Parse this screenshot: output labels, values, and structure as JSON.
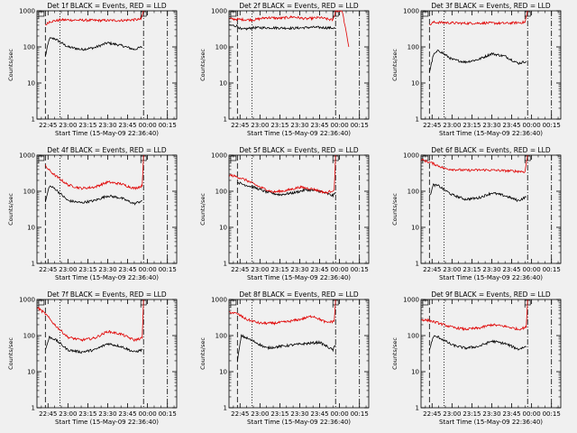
{
  "figure": {
    "background": "#f0f0f0",
    "colors": {
      "events": "#000000",
      "lld": "#e00000",
      "axes": "#000000"
    }
  },
  "chart_data": [
    {
      "type": "line",
      "title": "Det 1f BLACK = Events, RED = LLD",
      "xlabel": "Start Time (15-May-09 22:36:40)",
      "ylabel": "Counts/sec",
      "yscale": "log",
      "ylim": [
        1,
        1000
      ],
      "xlim": [
        "22:36:40",
        "00:22:00"
      ],
      "xticks": [
        "22:45",
        "23:00",
        "23:15",
        "23:30",
        "23:45",
        "00:00",
        "00:15"
      ],
      "yticks": [
        "1",
        "10",
        "100",
        "1000"
      ],
      "vlines": [
        {
          "time": "22:43",
          "style": "dashed"
        },
        {
          "time": "22:54",
          "style": "dotted"
        },
        {
          "time": "23:57",
          "style": "dashdot"
        },
        {
          "time": "00:15",
          "style": "dashdot"
        }
      ],
      "flags": [
        "22:40",
        "23:57"
      ],
      "series": [
        {
          "color": "#000000",
          "x": [
            "22:43",
            "22:46",
            "22:50",
            "23:00",
            "23:10",
            "23:20",
            "23:30",
            "23:40",
            "23:50",
            "23:56"
          ],
          "values": [
            55,
            170,
            170,
            100,
            85,
            95,
            130,
            110,
            85,
            100
          ]
        },
        {
          "color": "#e00000",
          "x": [
            "22:43",
            "22:46",
            "22:55",
            "23:10",
            "23:25",
            "23:40",
            "23:55",
            "23:57"
          ],
          "values": [
            400,
            500,
            560,
            550,
            540,
            540,
            580,
            1000
          ]
        }
      ]
    },
    {
      "type": "line",
      "title": "Det 2f BLACK = Events, RED = LLD",
      "xlabel": "Start Time (15-May-09 22:36:40)",
      "ylabel": "Counts/sec",
      "yscale": "log",
      "ylim": [
        1,
        1000
      ],
      "xlim": [
        "22:36:40",
        "00:22:00"
      ],
      "xticks": [
        "22:45",
        "23:00",
        "23:15",
        "23:30",
        "23:45",
        "00:00",
        "00:15"
      ],
      "yticks": [
        "1",
        "10",
        "100",
        "1000"
      ],
      "vlines": [
        {
          "time": "22:43",
          "style": "dashed"
        },
        {
          "time": "22:54",
          "style": "dotted"
        },
        {
          "time": "23:57",
          "style": "dashdot"
        },
        {
          "time": "00:15",
          "style": "dashdot"
        }
      ],
      "flags": [
        "22:40",
        "23:57"
      ],
      "series": [
        {
          "color": "#000000",
          "x": [
            "22:37",
            "22:43",
            "22:46",
            "22:55",
            "23:10",
            "23:25",
            "23:40",
            "23:50",
            "23:57"
          ],
          "values": [
            400,
            380,
            300,
            340,
            340,
            330,
            350,
            340,
            330
          ]
        },
        {
          "color": "#e00000",
          "x": [
            "22:37",
            "22:43",
            "22:55",
            "23:05",
            "23:15",
            "23:25",
            "23:35",
            "23:45",
            "23:55",
            "23:57",
            "00:02",
            "00:07"
          ],
          "values": [
            600,
            580,
            560,
            650,
            620,
            680,
            600,
            650,
            550,
            1000,
            1000,
            100
          ]
        }
      ]
    },
    {
      "type": "line",
      "title": "Det 3f BLACK = Events, RED = LLD",
      "xlabel": "Start Time (15-May-09 22:36:40)",
      "ylabel": "Counts/sec",
      "yscale": "log",
      "ylim": [
        1,
        1000
      ],
      "xlim": [
        "22:36:40",
        "00:22:00"
      ],
      "xticks": [
        "22:45",
        "23:00",
        "23:15",
        "23:30",
        "23:45",
        "00:00",
        "00:15"
      ],
      "yticks": [
        "1",
        "10",
        "100",
        "1000"
      ],
      "vlines": [
        {
          "time": "22:43",
          "style": "dashed"
        },
        {
          "time": "22:54",
          "style": "dotted"
        },
        {
          "time": "23:57",
          "style": "dashdot"
        },
        {
          "time": "00:15",
          "style": "dashdot"
        }
      ],
      "flags": [
        "22:40",
        "23:57"
      ],
      "series": [
        {
          "color": "#000000",
          "x": [
            "22:43",
            "22:46",
            "22:50",
            "23:00",
            "23:10",
            "23:20",
            "23:30",
            "23:40",
            "23:50",
            "23:56"
          ],
          "values": [
            20,
            60,
            80,
            45,
            38,
            45,
            65,
            55,
            35,
            40
          ]
        },
        {
          "color": "#e00000",
          "x": [
            "22:43",
            "22:46",
            "22:55",
            "23:10",
            "23:25",
            "23:40",
            "23:55",
            "23:57"
          ],
          "values": [
            400,
            480,
            470,
            450,
            460,
            450,
            480,
            1000
          ]
        }
      ]
    },
    {
      "type": "line",
      "title": "Det 4f BLACK = Events, RED = LLD",
      "xlabel": "Start Time (15-May-09 22:36:40)",
      "ylabel": "Counts/sec",
      "yscale": "log",
      "ylim": [
        1,
        1000
      ],
      "xlim": [
        "22:36:40",
        "00:22:00"
      ],
      "xticks": [
        "22:45",
        "23:00",
        "23:15",
        "23:30",
        "23:45",
        "00:00",
        "00:15"
      ],
      "yticks": [
        "1",
        "10",
        "100",
        "1000"
      ],
      "vlines": [
        {
          "time": "22:43",
          "style": "dashed"
        },
        {
          "time": "22:54",
          "style": "dotted"
        },
        {
          "time": "23:57",
          "style": "dashdot"
        },
        {
          "time": "00:15",
          "style": "dashdot"
        }
      ],
      "flags": [
        "22:40",
        "23:57"
      ],
      "series": [
        {
          "color": "#000000",
          "x": [
            "22:43",
            "22:46",
            "22:50",
            "23:00",
            "23:10",
            "23:20",
            "23:30",
            "23:40",
            "23:50",
            "23:56"
          ],
          "values": [
            50,
            140,
            120,
            55,
            48,
            55,
            75,
            65,
            45,
            55
          ]
        },
        {
          "color": "#e00000",
          "x": [
            "22:43",
            "22:46",
            "22:50",
            "23:00",
            "23:10",
            "23:20",
            "23:30",
            "23:40",
            "23:50",
            "23:56",
            "23:57"
          ],
          "values": [
            500,
            380,
            280,
            150,
            120,
            130,
            180,
            160,
            120,
            140,
            1000
          ]
        }
      ]
    },
    {
      "type": "line",
      "title": "Det 5f BLACK = Events, RED = LLD",
      "xlabel": "Start Time (15-May-09 22:36:40)",
      "ylabel": "Counts/sec",
      "yscale": "log",
      "ylim": [
        1,
        1000
      ],
      "xlim": [
        "22:36:40",
        "00:22:00"
      ],
      "xticks": [
        "22:45",
        "23:00",
        "23:15",
        "23:30",
        "23:45",
        "00:00",
        "00:15"
      ],
      "yticks": [
        "1",
        "10",
        "100",
        "1000"
      ],
      "vlines": [
        {
          "time": "22:43",
          "style": "dashed"
        },
        {
          "time": "22:54",
          "style": "dotted"
        },
        {
          "time": "23:57",
          "style": "dashdot"
        },
        {
          "time": "00:15",
          "style": "dashdot"
        }
      ],
      "flags": [
        "22:40",
        "23:57"
      ],
      "series": [
        {
          "color": "#000000",
          "x": [
            "22:43",
            "22:46",
            "22:55",
            "23:05",
            "23:15",
            "23:25",
            "23:35",
            "23:45",
            "23:55",
            "23:57"
          ],
          "values": [
            180,
            160,
            130,
            95,
            80,
            90,
            110,
            100,
            75,
            90
          ]
        },
        {
          "color": "#e00000",
          "x": [
            "22:37",
            "22:43",
            "22:50",
            "23:00",
            "23:10",
            "23:20",
            "23:30",
            "23:40",
            "23:50",
            "23:56",
            "23:57"
          ],
          "values": [
            280,
            250,
            200,
            130,
            95,
            105,
            130,
            115,
            90,
            110,
            1000
          ]
        }
      ]
    },
    {
      "type": "line",
      "title": "Det 6f BLACK = Events, RED = LLD",
      "xlabel": "Start Time (15-May-09 22:36:40)",
      "ylabel": "Counts/sec",
      "yscale": "log",
      "ylim": [
        1,
        1000
      ],
      "xlim": [
        "22:36:40",
        "00:22:00"
      ],
      "xticks": [
        "22:45",
        "23:00",
        "23:15",
        "23:30",
        "23:45",
        "00:00",
        "00:15"
      ],
      "yticks": [
        "1",
        "10",
        "100",
        "1000"
      ],
      "vlines": [
        {
          "time": "22:43",
          "style": "dashed"
        },
        {
          "time": "22:54",
          "style": "dotted"
        },
        {
          "time": "23:57",
          "style": "dashdot"
        },
        {
          "time": "00:15",
          "style": "dashdot"
        }
      ],
      "flags": [
        "22:40",
        "23:57"
      ],
      "series": [
        {
          "color": "#000000",
          "x": [
            "22:43",
            "22:46",
            "22:50",
            "23:00",
            "23:10",
            "23:20",
            "23:30",
            "23:40",
            "23:50",
            "23:56"
          ],
          "values": [
            70,
            150,
            140,
            80,
            60,
            65,
            90,
            75,
            55,
            70
          ]
        },
        {
          "color": "#e00000",
          "x": [
            "22:37",
            "22:45",
            "22:55",
            "23:10",
            "23:25",
            "23:40",
            "23:55",
            "23:57"
          ],
          "values": [
            750,
            600,
            420,
            380,
            390,
            370,
            350,
            1000
          ]
        }
      ]
    },
    {
      "type": "line",
      "title": "Det 7f BLACK = Events, RED = LLD",
      "xlabel": "Start Time (15-May-09 22:36:40)",
      "ylabel": "Counts/sec",
      "yscale": "log",
      "ylim": [
        1,
        1000
      ],
      "xlim": [
        "22:36:40",
        "00:22:00"
      ],
      "xticks": [
        "22:45",
        "23:00",
        "23:15",
        "23:30",
        "23:45",
        "00:00",
        "00:15"
      ],
      "yticks": [
        "1",
        "10",
        "100",
        "1000"
      ],
      "vlines": [
        {
          "time": "22:43",
          "style": "dashed"
        },
        {
          "time": "22:54",
          "style": "dotted"
        },
        {
          "time": "23:57",
          "style": "dashdot"
        },
        {
          "time": "00:15",
          "style": "dashdot"
        }
      ],
      "flags": [
        "22:40",
        "23:57"
      ],
      "series": [
        {
          "color": "#000000",
          "x": [
            "22:43",
            "22:46",
            "22:50",
            "23:00",
            "23:10",
            "23:20",
            "23:30",
            "23:40",
            "23:50",
            "23:56"
          ],
          "values": [
            40,
            90,
            80,
            40,
            35,
            40,
            60,
            50,
            35,
            40
          ]
        },
        {
          "color": "#e00000",
          "x": [
            "22:37",
            "22:43",
            "22:50",
            "23:00",
            "23:10",
            "23:20",
            "23:30",
            "23:40",
            "23:50",
            "23:56",
            "23:57"
          ],
          "values": [
            600,
            400,
            200,
            90,
            75,
            85,
            130,
            110,
            75,
            85,
            1000
          ]
        }
      ]
    },
    {
      "type": "line",
      "title": "Det 8f BLACK = Events, RED = LLD",
      "xlabel": "Start Time (15-May-09 22:36:40)",
      "ylabel": "Counts/sec",
      "yscale": "log",
      "ylim": [
        1,
        1000
      ],
      "xlim": [
        "22:36:40",
        "00:22:00"
      ],
      "xticks": [
        "22:45",
        "23:00",
        "23:15",
        "23:30",
        "23:45",
        "00:00",
        "00:15"
      ],
      "yticks": [
        "1",
        "10",
        "100",
        "1000"
      ],
      "vlines": [
        {
          "time": "22:43",
          "style": "dashed"
        },
        {
          "time": "22:54",
          "style": "dotted"
        },
        {
          "time": "23:57",
          "style": "dashdot"
        },
        {
          "time": "00:15",
          "style": "dashdot"
        }
      ],
      "flags": [
        "22:40",
        "23:57"
      ],
      "series": [
        {
          "color": "#000000",
          "x": [
            "22:43",
            "22:46",
            "22:55",
            "23:05",
            "23:15",
            "23:25",
            "23:35",
            "23:45",
            "23:55",
            "23:57"
          ],
          "values": [
            20,
            100,
            70,
            45,
            50,
            55,
            60,
            65,
            40,
            55
          ]
        },
        {
          "color": "#e00000",
          "x": [
            "22:37",
            "22:43",
            "22:50",
            "23:00",
            "23:10",
            "23:20",
            "23:30",
            "23:40",
            "23:50",
            "23:56",
            "23:57"
          ],
          "values": [
            450,
            400,
            280,
            220,
            220,
            240,
            280,
            350,
            230,
            250,
            1000
          ]
        }
      ]
    },
    {
      "type": "line",
      "title": "Det 9f BLACK = Events, RED = LLD",
      "xlabel": "Start Time (15-May-09 22:36:40)",
      "ylabel": "Counts/sec",
      "yscale": "log",
      "ylim": [
        1,
        1000
      ],
      "xlim": [
        "22:36:40",
        "00:22:00"
      ],
      "xticks": [
        "22:45",
        "23:00",
        "23:15",
        "23:30",
        "23:45",
        "00:00",
        "00:15"
      ],
      "yticks": [
        "1",
        "10",
        "100",
        "1000"
      ],
      "vlines": [
        {
          "time": "22:43",
          "style": "dashed"
        },
        {
          "time": "22:54",
          "style": "dotted"
        },
        {
          "time": "23:57",
          "style": "dashdot"
        },
        {
          "time": "00:15",
          "style": "dashdot"
        }
      ],
      "flags": [
        "22:40",
        "23:57"
      ],
      "series": [
        {
          "color": "#000000",
          "x": [
            "22:43",
            "22:46",
            "22:50",
            "23:00",
            "23:10",
            "23:20",
            "23:30",
            "23:40",
            "23:50",
            "23:56"
          ],
          "values": [
            40,
            95,
            90,
            55,
            45,
            50,
            70,
            60,
            42,
            50
          ]
        },
        {
          "color": "#e00000",
          "x": [
            "22:37",
            "22:43",
            "22:50",
            "23:00",
            "23:10",
            "23:20",
            "23:30",
            "23:40",
            "23:50",
            "23:56",
            "23:57"
          ],
          "values": [
            280,
            260,
            220,
            170,
            150,
            160,
            200,
            180,
            150,
            170,
            1000
          ]
        }
      ]
    }
  ]
}
